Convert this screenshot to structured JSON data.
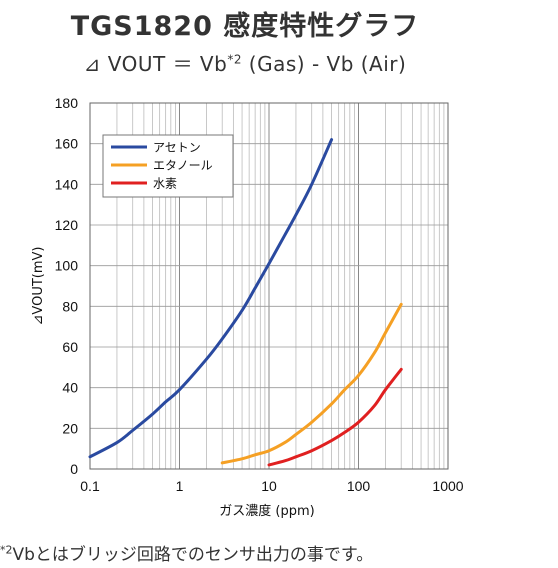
{
  "title": "TGS1820 感度特性グラフ",
  "subtitle": {
    "prefix": "⊿ VOUT ＝ Vb",
    "sup": "*2",
    "suffix": " (Gas) - Vb (Air)"
  },
  "footnote": {
    "sup": "*2",
    "text": "Vbとはブリッジ回路でのセンサ出力の事です。"
  },
  "chart_data": {
    "type": "line",
    "xscale": "log",
    "xlim": [
      0.1,
      1000
    ],
    "ylim": [
      0,
      180
    ],
    "xlabel": "ガス濃度 (ppm)",
    "ylabel": "⊿VOUT(mV)",
    "xticks": [
      "0.1",
      "1",
      "10",
      "100",
      "1000"
    ],
    "yticks": [
      0,
      20,
      40,
      60,
      80,
      100,
      120,
      140,
      160,
      180
    ],
    "grid": true,
    "legend_position": "top-left",
    "series": [
      {
        "name": "アセトン",
        "color": "#2a4aa0",
        "x": [
          0.1,
          0.2,
          0.3,
          0.5,
          0.7,
          1,
          2,
          3,
          5,
          7,
          10,
          15,
          20,
          30,
          50
        ],
        "y": [
          6,
          13,
          19,
          27,
          33,
          39,
          54,
          64,
          78,
          89,
          101,
          115,
          125,
          140,
          162
        ]
      },
      {
        "name": "エタノール",
        "color": "#f5a024",
        "x": [
          3,
          5,
          7,
          10,
          15,
          20,
          30,
          50,
          70,
          100,
          150,
          200,
          300
        ],
        "y": [
          3,
          5,
          7,
          9,
          13,
          17,
          23,
          32,
          39,
          46,
          57,
          67,
          81
        ]
      },
      {
        "name": "水素",
        "color": "#e02020",
        "x": [
          10,
          15,
          20,
          30,
          50,
          70,
          100,
          150,
          200,
          300
        ],
        "y": [
          2,
          4,
          6,
          9,
          14,
          18,
          23,
          31,
          39,
          49
        ]
      }
    ]
  }
}
